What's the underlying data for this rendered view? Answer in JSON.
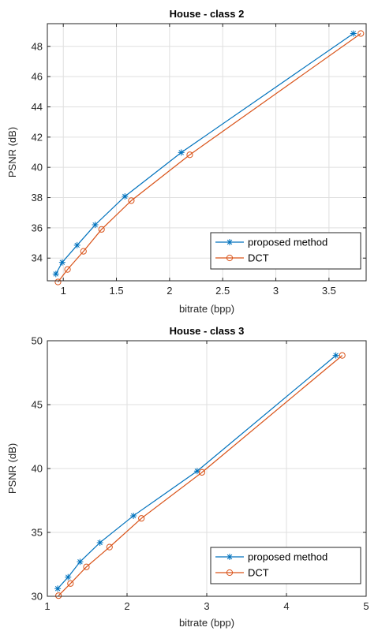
{
  "chart_data": [
    {
      "type": "line",
      "title": "House - class 2",
      "xlabel": "bitrate (bpp)",
      "ylabel": "PSNR (dB)",
      "xlim": [
        0.85,
        3.85
      ],
      "ylim": [
        32.5,
        49.5
      ],
      "xticks": [
        1,
        1.5,
        2,
        2.5,
        3,
        3.5
      ],
      "yticks": [
        34,
        36,
        38,
        40,
        42,
        44,
        46,
        48
      ],
      "grid": true,
      "legend_position": "bottom-right",
      "series": [
        {
          "name": "proposed method",
          "color": "#0072BD",
          "marker": "asterisk",
          "x": [
            0.93,
            0.99,
            1.13,
            1.3,
            1.58,
            2.11,
            3.73
          ],
          "y": [
            32.95,
            33.72,
            34.85,
            36.2,
            38.08,
            40.98,
            48.85
          ]
        },
        {
          "name": "DCT",
          "color": "#D95319",
          "marker": "circle",
          "x": [
            0.95,
            1.04,
            1.19,
            1.36,
            1.64,
            2.19,
            3.8
          ],
          "y": [
            32.42,
            33.25,
            34.45,
            35.9,
            37.8,
            40.83,
            48.85
          ]
        }
      ]
    },
    {
      "type": "line",
      "title": "House - class 3",
      "xlabel": "bitrate (bpp)",
      "ylabel": "PSNR (dB)",
      "xlim": [
        1,
        5
      ],
      "ylim": [
        30,
        50
      ],
      "xticks": [
        1,
        2,
        3,
        4,
        5
      ],
      "yticks": [
        30,
        35,
        40,
        45,
        50
      ],
      "grid": true,
      "legend_position": "bottom-right",
      "series": [
        {
          "name": "proposed method",
          "color": "#0072BD",
          "marker": "asterisk",
          "x": [
            1.13,
            1.26,
            1.41,
            1.66,
            2.08,
            2.88,
            4.62
          ],
          "y": [
            30.6,
            31.5,
            32.7,
            34.2,
            36.3,
            39.8,
            48.85
          ]
        },
        {
          "name": "DCT",
          "color": "#D95319",
          "marker": "circle",
          "x": [
            1.14,
            1.29,
            1.49,
            1.78,
            2.18,
            2.94,
            4.7
          ],
          "y": [
            30.05,
            31.0,
            32.3,
            33.85,
            36.1,
            39.7,
            48.85
          ]
        }
      ]
    }
  ]
}
